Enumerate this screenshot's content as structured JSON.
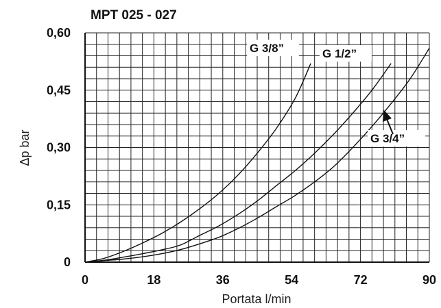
{
  "chart_data": {
    "type": "line",
    "title": "MPT 025 - 027",
    "xlabel": "Portata l/min",
    "ylabel": "Δp bar",
    "xlim": [
      0,
      90
    ],
    "ylim": [
      0,
      0.6
    ],
    "x_ticks": [
      "0",
      "18",
      "36",
      "54",
      "72",
      "90"
    ],
    "y_ticks": [
      "0",
      "0,15",
      "0,30",
      "0,45",
      "0,60"
    ],
    "grid": true,
    "series": [
      {
        "name": "G 3/8”",
        "x": [
          0,
          5,
          10,
          15,
          20,
          25,
          30,
          35,
          40,
          45,
          50,
          55,
          59
        ],
        "y": [
          0,
          0.01,
          0.028,
          0.05,
          0.075,
          0.105,
          0.14,
          0.18,
          0.228,
          0.285,
          0.35,
          0.43,
          0.52
        ]
      },
      {
        "name": "G 1/2”",
        "x": [
          0,
          5,
          10,
          15,
          20,
          25,
          30,
          35,
          40,
          45,
          50,
          55,
          60,
          65,
          70,
          75,
          80
        ],
        "y": [
          0,
          0.005,
          0.013,
          0.022,
          0.032,
          0.045,
          0.07,
          0.095,
          0.125,
          0.16,
          0.2,
          0.24,
          0.285,
          0.335,
          0.39,
          0.45,
          0.52
        ]
      },
      {
        "name": "G 3/4”",
        "x": [
          0,
          5,
          10,
          15,
          20,
          25,
          30,
          35,
          40,
          45,
          50,
          55,
          60,
          65,
          70,
          75,
          80,
          85,
          90
        ],
        "y": [
          0,
          0.004,
          0.008,
          0.014,
          0.022,
          0.033,
          0.048,
          0.065,
          0.088,
          0.115,
          0.145,
          0.175,
          0.21,
          0.25,
          0.3,
          0.355,
          0.415,
          0.48,
          0.56
        ]
      }
    ]
  }
}
